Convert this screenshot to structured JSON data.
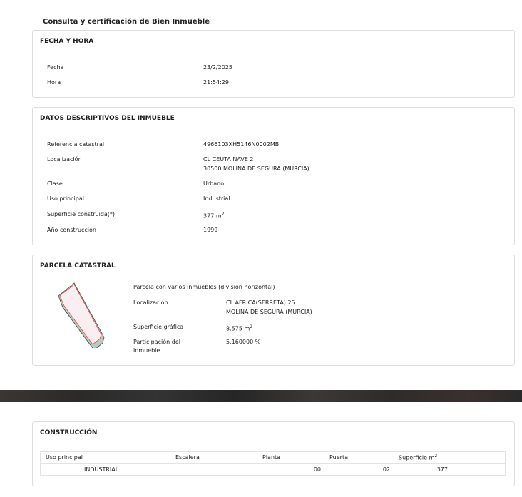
{
  "title": "Consulta y certificación de Bien Inmueble",
  "fecha_hora": {
    "heading": "FECHA Y HORA",
    "fecha_label": "Fecha",
    "fecha": "23/2/2025",
    "hora_label": "Hora",
    "hora": "21:54:29"
  },
  "datos": {
    "heading": "DATOS DESCRIPTIVOS DEL INMUEBLE",
    "ref_label": "Referencia catastral",
    "ref": "4966103XH5146N0002MB",
    "loc_label": "Localización",
    "loc1": "CL CEUTA NAVE 2",
    "loc2": "30500 MOLINA DE SEGURA (MURCIA)",
    "clase_label": "Clase",
    "clase": "Urbano",
    "uso_label": "Uso principal",
    "uso": "Industrial",
    "sup_label": "Superficie construida(*)",
    "sup": "377 m",
    "sup_unit_exp": "2",
    "anio_label": "Año construcción",
    "anio": "1999"
  },
  "parcela": {
    "heading": "PARCELA CATASTRAL",
    "desc": "Parcela con varios inmuebles (division horizontal)",
    "loc_label": "Localización",
    "loc1": "CL AFRICA(SERRETA) 25",
    "loc2": "MOLINA DE SEGURA (MURCIA)",
    "sup_label": "Superficie gráfica",
    "sup": "8.575 m",
    "sup_unit_exp": "2",
    "part_label1": "Participación del",
    "part_label2": "inmueble",
    "part": "5,160000 %"
  },
  "construccion": {
    "heading": "CONSTRUCCIÓN",
    "columns": [
      "Uso principal",
      "Escalera",
      "Planta",
      "Puerta",
      "Superficie m"
    ],
    "sup_exp": "2",
    "rows": [
      [
        "INDUSTRIAL",
        "",
        "00",
        "02",
        "377"
      ]
    ]
  }
}
